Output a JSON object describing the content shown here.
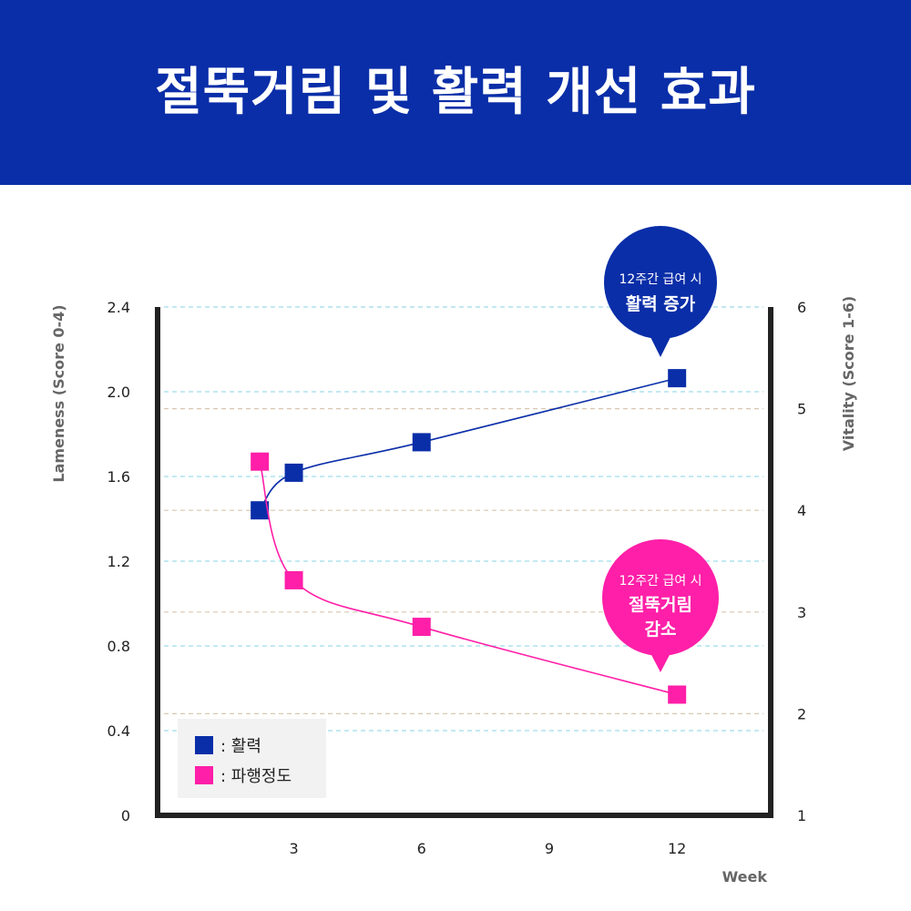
{
  "header": {
    "title": "절뚝거림 및 활력 개선 효과"
  },
  "chart_data": {
    "type": "line",
    "x": [
      2.2,
      3,
      6,
      12
    ],
    "xticks": [
      3,
      6,
      9,
      12
    ],
    "xlim": [
      -0.2,
      14.2
    ],
    "xlabel": "Week",
    "y_left": {
      "label": "Lameness (Score 0-4)",
      "ticks": [
        "0",
        "0.4",
        "0.8",
        "1.2",
        "1.6",
        "2.0",
        "2.4"
      ],
      "ylim": [
        0,
        2.4
      ]
    },
    "y_right": {
      "label": "Vitality (Score 1-6)",
      "ticks": [
        "1",
        "2",
        "3",
        "4",
        "5",
        "6"
      ],
      "ylim": [
        1,
        6
      ]
    },
    "series": [
      {
        "name": "활력",
        "axis": "right",
        "color": "#0a2ea8",
        "values": [
          4.0,
          4.37,
          4.67,
          5.3
        ]
      },
      {
        "name": "파행정도",
        "axis": "left",
        "color": "#ff1fa8",
        "values": [
          1.67,
          1.11,
          0.89,
          0.57
        ]
      }
    ],
    "grid": true,
    "legend": {
      "position": "bottom-left",
      "items": [
        {
          "label": ": 활력",
          "color": "#0a2ea8"
        },
        {
          "label": ": 파행정도",
          "color": "#ff1fa8"
        }
      ]
    },
    "annotations": [
      {
        "target": "활력",
        "line1": "12주간 급여 시",
        "line2": "활력 증가",
        "line3": "",
        "color": "#0a2ea8"
      },
      {
        "target": "파행정도",
        "line1": "12주간 급여 시",
        "line2": "절뚝거림",
        "line3": "감소",
        "color": "#ff1fa8"
      }
    ]
  }
}
